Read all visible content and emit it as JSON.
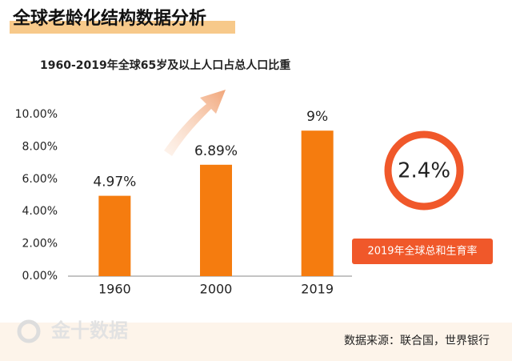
{
  "header": {
    "title": "全球老龄化结构数据分析"
  },
  "chart_data": {
    "type": "bar",
    "title": "1960-2019年全球65岁及以上人口占总人口比重",
    "categories": [
      "1960",
      "2000",
      "2019"
    ],
    "values": [
      4.97,
      6.89,
      9
    ],
    "value_labels": [
      "4.97%",
      "6.89%",
      "9%"
    ],
    "color": "#f57c0f",
    "ylim": [
      0,
      10
    ],
    "yticks": [
      {
        "value": 0,
        "label": "0.00%"
      },
      {
        "value": 2,
        "label": "2.00%"
      },
      {
        "value": 4,
        "label": "4.00%"
      },
      {
        "value": 6,
        "label": "6.00%"
      },
      {
        "value": 8,
        "label": "8.00%"
      },
      {
        "value": 10,
        "label": "10.00%"
      }
    ]
  },
  "callout": {
    "value": "2.4%",
    "label": "2019年全球总和生育率"
  },
  "footer": {
    "watermark": "金十数据",
    "source": "数据来源：联合国，世界银行"
  }
}
